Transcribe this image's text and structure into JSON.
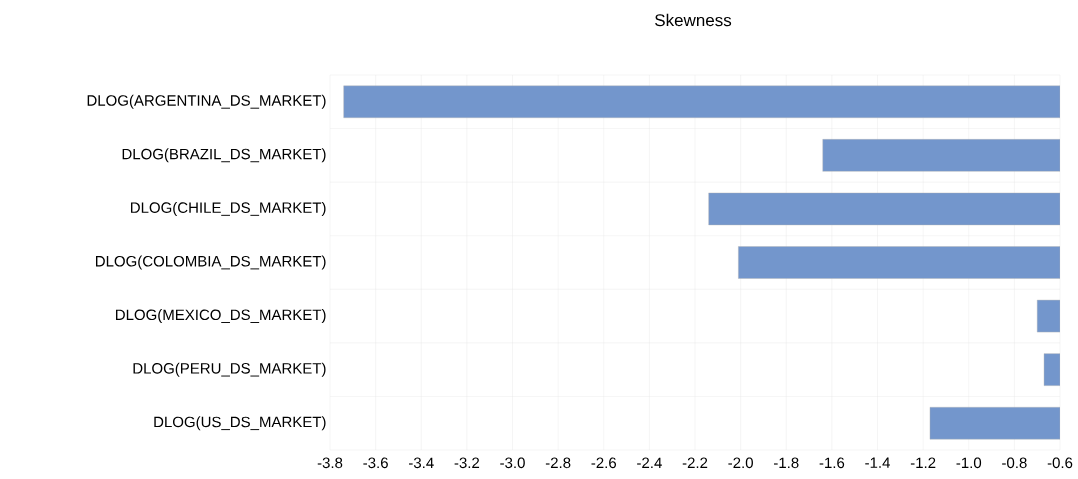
{
  "chart_data": {
    "type": "bar",
    "orientation": "horizontal",
    "title": "Skewness",
    "categories": [
      "DLOG(ARGENTINA_DS_MARKET)",
      "DLOG(BRAZIL_DS_MARKET)",
      "DLOG(CHILE_DS_MARKET)",
      "DLOG(COLOMBIA_DS_MARKET)",
      "DLOG(MEXICO_DS_MARKET)",
      "DLOG(PERU_DS_MARKET)",
      "DLOG(US_DS_MARKET)"
    ],
    "values": [
      -3.74,
      -1.64,
      -2.14,
      -2.01,
      -0.7,
      -0.67,
      -1.17
    ],
    "color": "#7396cc",
    "xlim": [
      -3.8,
      -0.6
    ],
    "xticks": [
      -3.8,
      -3.6,
      -3.4,
      -3.2,
      {
        "value": -3.0,
        "label": "-3.0"
      },
      -2.8,
      -2.6,
      -2.4,
      -2.2,
      {
        "value": -2.0,
        "label": "-2.0"
      },
      -1.8,
      -1.6,
      -1.4,
      -1.2,
      {
        "value": -1.0,
        "label": "-1.0"
      },
      -0.8,
      -0.6
    ],
    "grid": true
  }
}
